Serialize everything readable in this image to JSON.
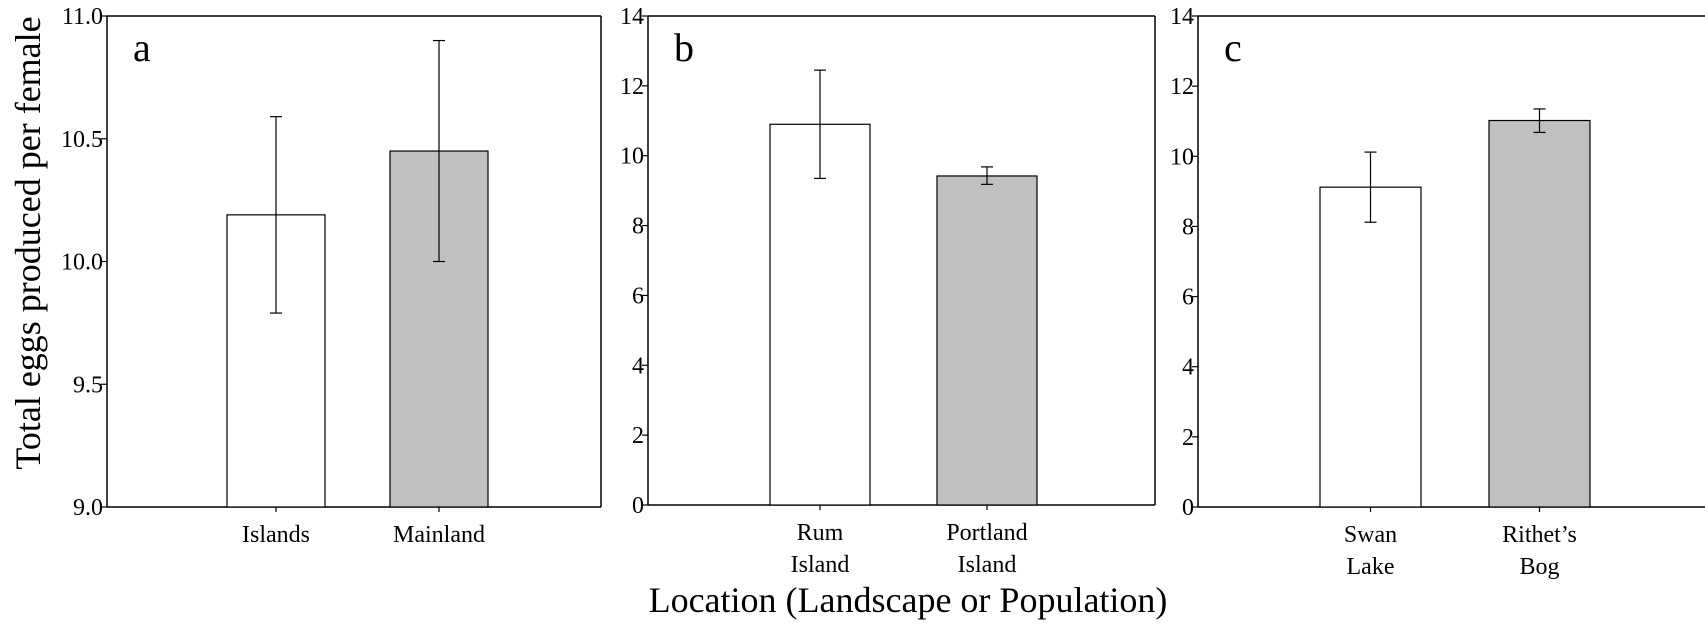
{
  "figure": {
    "ylabel": "Total eggs produced per female",
    "xlabel": "Location (Landscape or Population)"
  },
  "colors": {
    "bar_fills": [
      "#ffffff",
      "#c0c0c0"
    ],
    "stroke": "#000000"
  },
  "chart_data": [
    {
      "type": "bar",
      "panel_label": "a",
      "categories": [
        [
          "Islands"
        ],
        [
          "Mainland"
        ]
      ],
      "values": [
        10.19,
        10.45
      ],
      "error_bars": [
        [
          9.79,
          10.59
        ],
        [
          10.0,
          10.9
        ]
      ],
      "ylim": [
        9.0,
        11.0
      ],
      "ticks": [
        "9.0",
        "9.5",
        "10.0",
        "10.5",
        "11.0"
      ],
      "tick_values": [
        9.0,
        9.5,
        10.0,
        10.5,
        11.0
      ],
      "grid": false
    },
    {
      "type": "bar",
      "panel_label": "b",
      "categories": [
        [
          "Rum",
          "Island"
        ],
        [
          "Portland",
          "Island"
        ]
      ],
      "values": [
        10.9,
        9.42
      ],
      "error_bars": [
        [
          9.35,
          12.45
        ],
        [
          9.18,
          9.68
        ]
      ],
      "ylim": [
        0,
        14
      ],
      "ticks": [
        "0",
        "2",
        "4",
        "6",
        "8",
        "10",
        "12",
        "14"
      ],
      "tick_values": [
        0,
        2,
        4,
        6,
        8,
        10,
        12,
        14
      ],
      "grid": false
    },
    {
      "type": "bar",
      "panel_label": "c",
      "categories": [
        [
          "Swan",
          "Lake"
        ],
        [
          "Rithet’s",
          "Bog"
        ]
      ],
      "values": [
        9.12,
        11.02
      ],
      "error_bars": [
        [
          8.12,
          10.12
        ],
        [
          10.68,
          11.35
        ]
      ],
      "ylim": [
        0,
        14
      ],
      "ticks": [
        "0",
        "2",
        "4",
        "6",
        "8",
        "10",
        "12",
        "14"
      ],
      "tick_values": [
        0,
        2,
        4,
        6,
        8,
        10,
        12,
        14
      ],
      "grid": false
    }
  ]
}
